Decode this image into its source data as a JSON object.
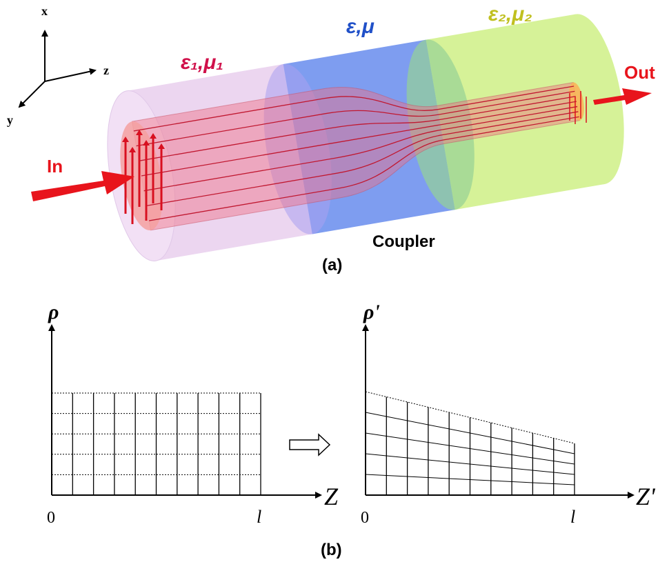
{
  "panel_a": {
    "axes": {
      "x": "x",
      "y": "y",
      "z": "z"
    },
    "regions": [
      "ε₁,μ₁",
      "ε,μ",
      "ε₂,μ₂"
    ],
    "input": "In",
    "output": "Out",
    "device": "Coupler",
    "caption": "(a)"
  },
  "panel_b": {
    "original": {
      "y_label": "ρ",
      "x_label": "Z",
      "origin": "0",
      "end": "l"
    },
    "transformed": {
      "y_label": "ρ'",
      "x_label": "Z'",
      "origin": "0",
      "end": "l"
    },
    "caption": "(b)"
  }
}
